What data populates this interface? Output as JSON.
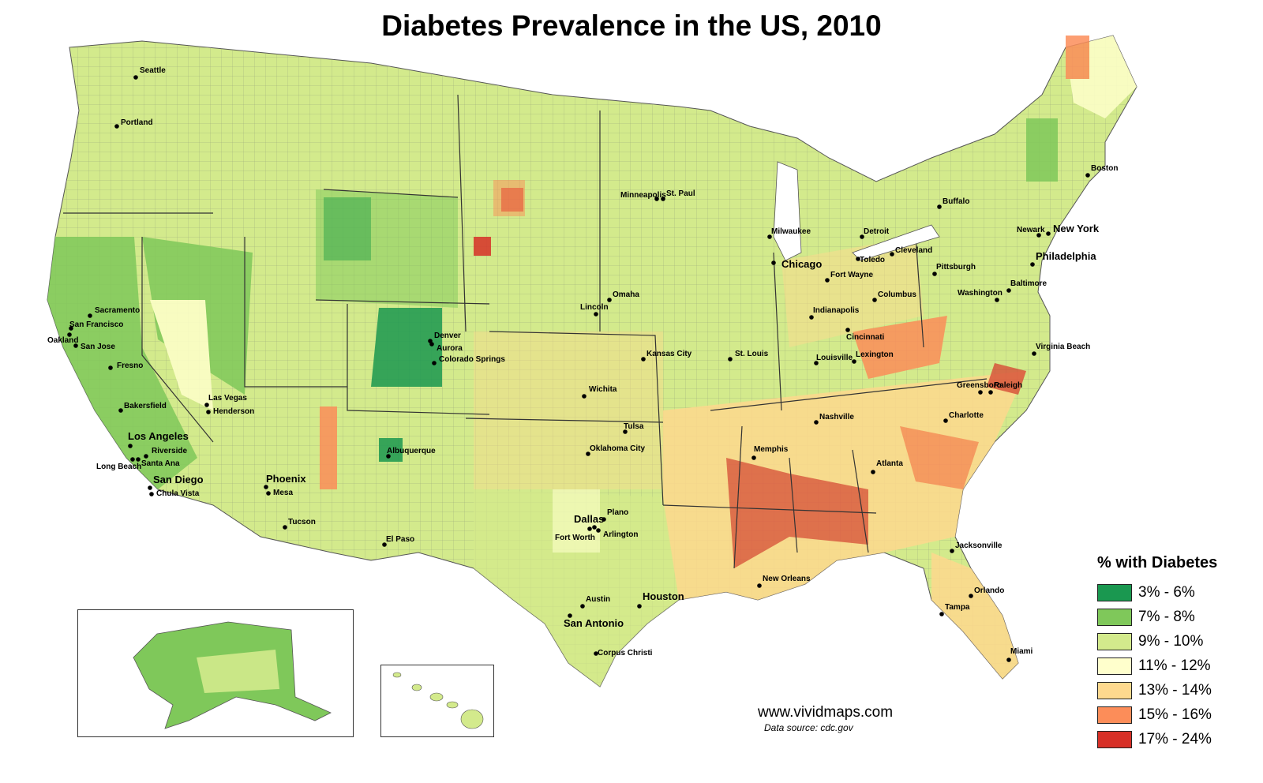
{
  "title": "Diabetes Prevalence in the US, 2010",
  "legend": {
    "title": "% with Diabetes",
    "items": [
      {
        "label": "3% - 6%",
        "color": "#1a9850"
      },
      {
        "label": "7% - 8%",
        "color": "#7fc85a"
      },
      {
        "label": "9% - 10%",
        "color": "#d3ea8c"
      },
      {
        "label": "11% - 12%",
        "color": "#ffffcc"
      },
      {
        "label": "13% - 14%",
        "color": "#fed98e"
      },
      {
        "label": "15% - 16%",
        "color": "#fc8d59"
      },
      {
        "label": "17% - 24%",
        "color": "#d73027"
      }
    ]
  },
  "website": "www.vividmaps.com",
  "source": "Data source: cdc.gov",
  "cities": [
    {
      "name": "Seattle",
      "big": false
    },
    {
      "name": "Portland",
      "big": false
    },
    {
      "name": "Sacramento",
      "big": false
    },
    {
      "name": "San Francisco",
      "big": false
    },
    {
      "name": "Oakland",
      "big": false
    },
    {
      "name": "San Jose",
      "big": false
    },
    {
      "name": "Fresno",
      "big": false
    },
    {
      "name": "Bakersfield",
      "big": false
    },
    {
      "name": "Los Angeles",
      "big": true
    },
    {
      "name": "Riverside",
      "big": false
    },
    {
      "name": "Santa Ana",
      "big": false
    },
    {
      "name": "Long Beach",
      "big": false
    },
    {
      "name": "San Diego",
      "big": true
    },
    {
      "name": "Chula Vista",
      "big": false
    },
    {
      "name": "Las Vegas",
      "big": false
    },
    {
      "name": "Henderson",
      "big": false
    },
    {
      "name": "Phoenix",
      "big": true
    },
    {
      "name": "Mesa",
      "big": false
    },
    {
      "name": "Tucson",
      "big": false
    },
    {
      "name": "Albuquerque",
      "big": false
    },
    {
      "name": "El Paso",
      "big": false
    },
    {
      "name": "Denver",
      "big": false
    },
    {
      "name": "Aurora",
      "big": false
    },
    {
      "name": "Colorado Springs",
      "big": false
    },
    {
      "name": "Minneapolis",
      "big": false
    },
    {
      "name": "St. Paul",
      "big": false
    },
    {
      "name": "Omaha",
      "big": false
    },
    {
      "name": "Lincoln",
      "big": false
    },
    {
      "name": "Kansas City",
      "big": false
    },
    {
      "name": "Wichita",
      "big": false
    },
    {
      "name": "Tulsa",
      "big": false
    },
    {
      "name": "Oklahoma City",
      "big": false
    },
    {
      "name": "Dallas",
      "big": true
    },
    {
      "name": "Plano",
      "big": false
    },
    {
      "name": "Fort Worth",
      "big": false
    },
    {
      "name": "Arlington",
      "big": false
    },
    {
      "name": "Austin",
      "big": false
    },
    {
      "name": "San Antonio",
      "big": true
    },
    {
      "name": "Houston",
      "big": true
    },
    {
      "name": "Corpus Christi",
      "big": false
    },
    {
      "name": "Milwaukee",
      "big": false
    },
    {
      "name": "Chicago",
      "big": true
    },
    {
      "name": "St. Louis",
      "big": false
    },
    {
      "name": "Detroit",
      "big": false
    },
    {
      "name": "Toledo",
      "big": false
    },
    {
      "name": "Fort Wayne",
      "big": false
    },
    {
      "name": "Indianapolis",
      "big": false
    },
    {
      "name": "Cincinnati",
      "big": false
    },
    {
      "name": "Columbus",
      "big": false
    },
    {
      "name": "Cleveland",
      "big": false
    },
    {
      "name": "Pittsburgh",
      "big": false
    },
    {
      "name": "Louisville",
      "big": false
    },
    {
      "name": "Lexington",
      "big": false
    },
    {
      "name": "Nashville",
      "big": false
    },
    {
      "name": "Memphis",
      "big": false
    },
    {
      "name": "Atlanta",
      "big": false
    },
    {
      "name": "New Orleans",
      "big": false
    },
    {
      "name": "Jacksonville",
      "big": false
    },
    {
      "name": "Orlando",
      "big": false
    },
    {
      "name": "Tampa",
      "big": false
    },
    {
      "name": "Miami",
      "big": false
    },
    {
      "name": "Charlotte",
      "big": false
    },
    {
      "name": "Greensboro",
      "big": false
    },
    {
      "name": "Raleigh",
      "big": false
    },
    {
      "name": "Virginia Beach",
      "big": false
    },
    {
      "name": "Washington",
      "big": false
    },
    {
      "name": "Baltimore",
      "big": false
    },
    {
      "name": "Philadelphia",
      "big": true
    },
    {
      "name": "Newark",
      "big": false
    },
    {
      "name": "New York",
      "big": true
    },
    {
      "name": "Buffalo",
      "big": false
    },
    {
      "name": "Boston",
      "big": false
    }
  ]
}
